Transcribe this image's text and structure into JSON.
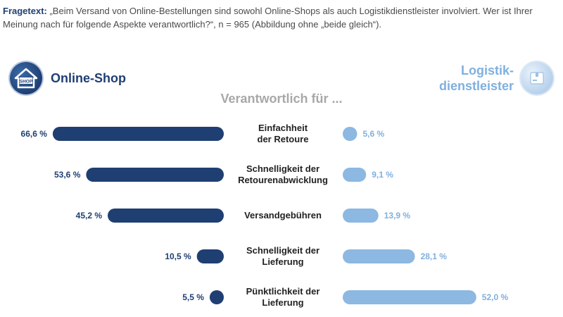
{
  "question": {
    "label": "Fragetext:",
    "text": " „Beim Versand von Online-Bestellungen sind sowohl Online-Shops als auch Logistikdienstleister involviert. Wer ist Ihrer Meinung nach für folgende Aspekte verantwortlich?“, n = 965 (Abbildung ohne „beide gleich“)."
  },
  "legend": {
    "left": {
      "label": "Online-Shop",
      "icon": "shop-house-icon",
      "icon_text": "SHOP"
    },
    "right": {
      "label": "Logistik-\ndienstleister",
      "icon": "parcel-icon"
    }
  },
  "subtitle": "Verantwortlich für ...",
  "colors": {
    "shop": "#1f3f73",
    "logistik": "#8cb8e2",
    "shop_text": "#1f3f73",
    "logistik_text": "#7fb0df"
  },
  "chart_data": {
    "type": "bar",
    "orientation": "horizontal-diverging",
    "categories": [
      "Einfachheit\nder Retoure",
      "Schnelligkeit der\nRetourenabwicklung",
      "Versandgebühren",
      "Schnelligkeit der\nLieferung",
      "Pünktlichkeit der\nLieferung"
    ],
    "series": [
      {
        "name": "Online-Shop",
        "values": [
          66.6,
          53.6,
          45.2,
          10.5,
          5.5
        ],
        "labels": [
          "66,6 %",
          "53,6 %",
          "45,2 %",
          "10,5 %",
          "5,5 %"
        ]
      },
      {
        "name": "Logistikdienstleister",
        "values": [
          5.6,
          9.1,
          13.9,
          28.1,
          52.0
        ],
        "labels": [
          "5,6 %",
          "9,1 %",
          "13,9 %",
          "28,1 %",
          "52,0 %"
        ]
      }
    ],
    "unit": "%"
  }
}
